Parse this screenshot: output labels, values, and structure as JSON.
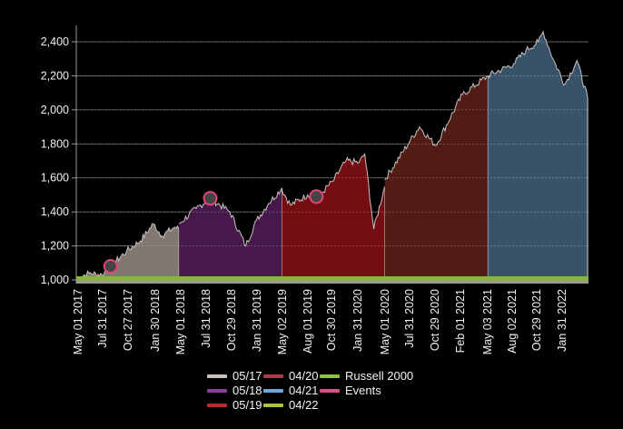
{
  "chart_data": {
    "type": "area",
    "title": "",
    "xlabel": "",
    "ylabel": "",
    "ylim": [
      1000,
      2500
    ],
    "yticks": [
      1000,
      1200,
      1400,
      1600,
      1800,
      2000,
      2200,
      2400
    ],
    "ytick_labels": [
      "1,000",
      "1,200",
      "1,400",
      "1,600",
      "1,800",
      "2,000",
      "2,200",
      "2,400"
    ],
    "xtick_labels": [
      "May 01 2017",
      "Jul 31 2017",
      "Oct 27 2017",
      "Jan 30 2018",
      "May 01 2018",
      "Jul 31 2018",
      "Oct 29 2018",
      "Jan 31 2019",
      "May 02 2019",
      "Aug 01 2019",
      "Oct 30 2019",
      "Jan 31 2020",
      "May 01 2020",
      "Jul 31 2020",
      "Oct 29 2020",
      "Feb 01 2021",
      "May 03 2021",
      "Aug 02 2021",
      "Oct 29 2021",
      "Jan 31 2022"
    ],
    "grid": true,
    "legend_position": "bottom",
    "series": [
      {
        "name": "05/17",
        "color": "#8a7d78",
        "x": [
          "May 01 2017",
          "Jun 15 2017",
          "Jul 31 2017",
          "Aug 31 2017",
          "Oct 27 2017",
          "Dec 15 2017",
          "Jan 30 2018",
          "Mar 01 2018",
          "Apr 15 2018",
          "May 01 2018"
        ],
        "values": [
          1010,
          1040,
          1030,
          1080,
          1170,
          1230,
          1330,
          1260,
          1310,
          1300
        ]
      },
      {
        "name": "05/18",
        "color": "#4a1a4e",
        "x": [
          "May 01 2018",
          "Jul 01 2018",
          "Aug 20 2018",
          "Oct 29 2018",
          "Dec 24 2018",
          "Jan 31 2019",
          "Mar 15 2019",
          "May 02 2019"
        ],
        "values": [
          1330,
          1420,
          1480,
          1400,
          1200,
          1350,
          1450,
          1540
        ]
      },
      {
        "name": "05/19",
        "color": "#7a0f14",
        "x": [
          "May 02 2019",
          "Jun 01 2019",
          "Aug 01 2019",
          "Sep 01 2019",
          "Oct 30 2019",
          "Dec 15 2019",
          "Jan 31 2020",
          "Feb 20 2020",
          "Mar 23 2020",
          "May 01 2020"
        ],
        "values": [
          1530,
          1440,
          1500,
          1480,
          1580,
          1700,
          1690,
          1740,
          1300,
          1550
        ]
      },
      {
        "name": "04/20",
        "color": "#541e14",
        "x": [
          "May 01 2020",
          "Jul 31 2020",
          "Sep 01 2020",
          "Oct 29 2020",
          "Feb 01 2021",
          "May 03 2021"
        ],
        "values": [
          1590,
          1820,
          1900,
          1790,
          2090,
          2200
        ]
      },
      {
        "name": "04/21",
        "color": "#3b5670",
        "x": [
          "May 03 2021",
          "Aug 02 2021",
          "Sep 15 2021",
          "Oct 29 2021",
          "Nov 15 2021",
          "Dec 20 2021",
          "Jan 31 2022",
          "Mar 15 2022",
          "Apr 22 2022"
        ],
        "values": [
          2200,
          2270,
          2350,
          2400,
          2460,
          2300,
          2150,
          2290,
          2070
        ]
      },
      {
        "name": "04/22",
        "color": "#a9c23f",
        "values": []
      },
      {
        "name": "Russell 2000",
        "color": "#8cb43c",
        "values": [
          1000,
          1000
        ]
      },
      {
        "name": "Events",
        "color": "#e0457b",
        "points": [
          {
            "x": "Aug 31 2017",
            "y": 1080
          },
          {
            "x": "Aug 20 2018",
            "y": 1480
          },
          {
            "x": "Sep 01 2019",
            "y": 1490
          }
        ]
      }
    ]
  },
  "legend": {
    "items": [
      {
        "label": "05/17",
        "color": "#c8c0bc"
      },
      {
        "label": "04/20",
        "color": "#b03a44"
      },
      {
        "label": "Russell 2000",
        "color": "#8cc43c"
      },
      {
        "label": "05/18",
        "color": "#8a3f9a"
      },
      {
        "label": "04/21",
        "color": "#6fa8d8"
      },
      {
        "label": "Events",
        "color": "#d94f8a"
      },
      {
        "label": "05/19",
        "color": "#b32a34"
      },
      {
        "label": "04/22",
        "color": "#a9c23f"
      }
    ]
  }
}
